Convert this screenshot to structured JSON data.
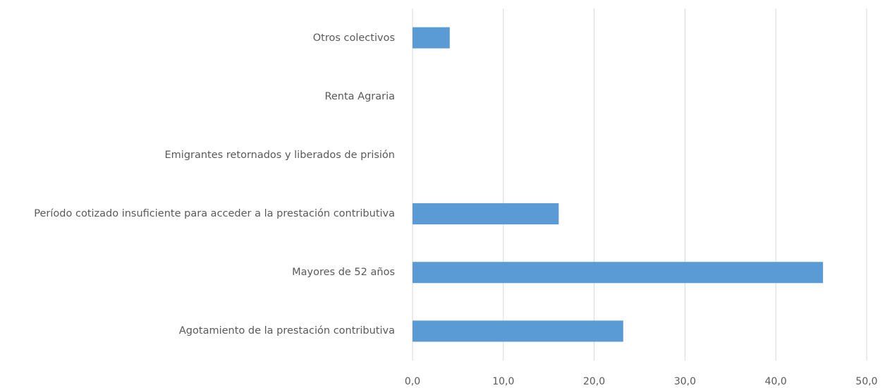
{
  "chart_data": {
    "type": "bar",
    "orientation": "horizontal",
    "categories": [
      "Otros colectivos",
      "Renta Agraria",
      "Emigrantes retornados y liberados de prisión",
      "Período cotizado insuficiente para acceder a la prestación contributiva",
      "Mayores de 52 años",
      "Agotamiento de la prestación contributiva"
    ],
    "values": [
      4.1,
      0,
      0,
      16.1,
      45.2,
      23.2
    ],
    "color": "#5b9bd5",
    "xlim": [
      0,
      50
    ],
    "xticks": [
      {
        "value": 0,
        "label": "0,0"
      },
      {
        "value": 10,
        "label": "10,0"
      },
      {
        "value": 20,
        "label": "20,0"
      },
      {
        "value": 30,
        "label": "30,0"
      },
      {
        "value": 40,
        "label": "40,0"
      },
      {
        "value": 50,
        "label": "50,0"
      }
    ],
    "grid": true
  }
}
